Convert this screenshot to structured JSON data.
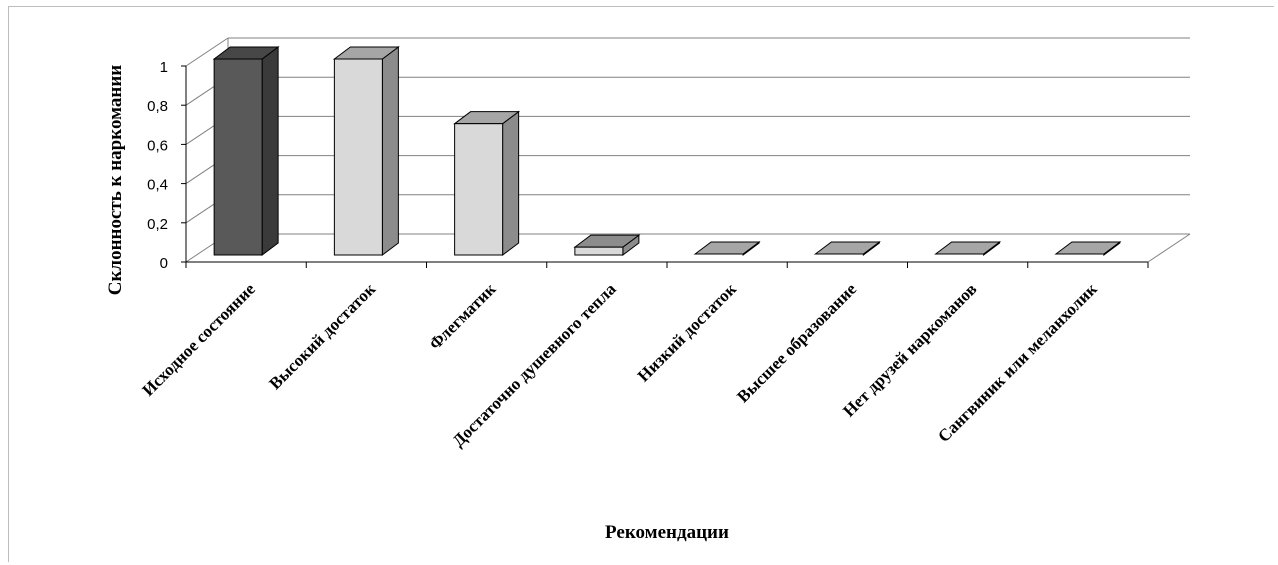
{
  "chart_data": {
    "type": "bar",
    "style": "3d-column",
    "title": "",
    "xlabel": "Рекомендации",
    "ylabel": "Склонность  к наркомании",
    "ylim": [
      0,
      1
    ],
    "yticks": [
      "0",
      "0,2",
      "0,4",
      "0,6",
      "0,8",
      "1"
    ],
    "grid": true,
    "legend": "none",
    "categories": [
      "Исходное состояние",
      "Высокий достаток",
      "Флегматик",
      "Достаточно  душевного тепла",
      "Низкий  достаток",
      "Высшее образование",
      "Нет друзей наркоманов",
      "Сангвиник или меланхолик"
    ],
    "values": [
      1,
      1,
      0.67,
      0.04,
      0,
      0,
      0,
      0
    ],
    "colors": {
      "first_bar": "#595959",
      "light_bars": "#d9d9d9",
      "flat_bars": "#a6a6a6",
      "gridlines": "#808080"
    }
  }
}
